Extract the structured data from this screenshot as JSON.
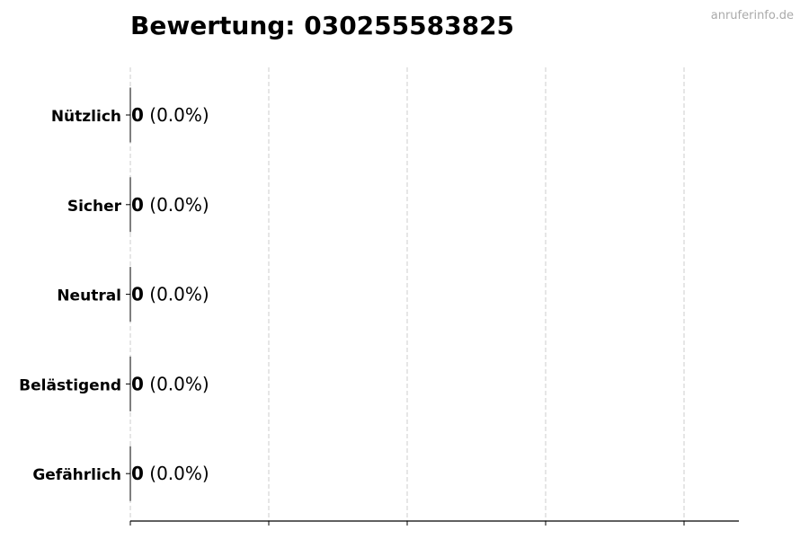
{
  "chart_data": {
    "type": "bar",
    "orientation": "horizontal",
    "title": "Bewertung: 030255583825",
    "watermark": "anruferinfo.de",
    "categories": [
      "Nützlich",
      "Sicher",
      "Neutral",
      "Belästigend",
      "Gefährlich"
    ],
    "values": [
      0,
      0,
      0,
      0,
      0
    ],
    "value_labels": [
      "0",
      "0",
      "0",
      "0",
      "0"
    ],
    "percent_labels": [
      "(0.0%)",
      "(0.0%)",
      "(0.0%)",
      "(0.0%)",
      "(0.0%)"
    ],
    "xlabel": "",
    "ylabel": "",
    "x_tick_count": 5,
    "grid": "vertical dashed",
    "bar_edge_color": "#000000",
    "grid_color": "#cccccc"
  }
}
